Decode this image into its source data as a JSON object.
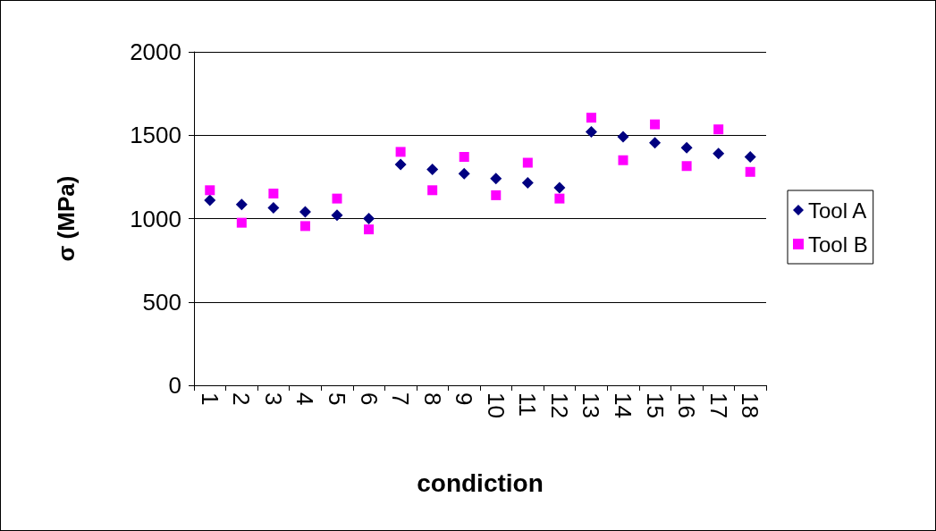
{
  "chart_data": {
    "type": "scatter",
    "xlabel": "condiction",
    "ylabel": "σ (MPa)",
    "categories": [
      "1",
      "2",
      "3",
      "4",
      "5",
      "6",
      "7",
      "8",
      "9",
      "10",
      "11",
      "12",
      "13",
      "14",
      "15",
      "16",
      "17",
      "18"
    ],
    "series": [
      {
        "name": "Tool A",
        "color": "#000080",
        "marker": "diamond",
        "values": [
          1110,
          1085,
          1065,
          1040,
          1020,
          1000,
          1325,
          1295,
          1270,
          1240,
          1215,
          1185,
          1520,
          1490,
          1455,
          1425,
          1390,
          1370
        ]
      },
      {
        "name": "Tool B",
        "color": "#ff00ff",
        "marker": "square",
        "values": [
          1170,
          975,
          1150,
          955,
          1120,
          935,
          1400,
          1170,
          1370,
          1140,
          1335,
          1120,
          1605,
          1350,
          1565,
          1315,
          1535,
          1280
        ]
      }
    ],
    "ylim": [
      0,
      2000
    ],
    "yticks": [
      0,
      500,
      1000,
      1500,
      2000
    ],
    "grid": "y",
    "legend": "right"
  }
}
